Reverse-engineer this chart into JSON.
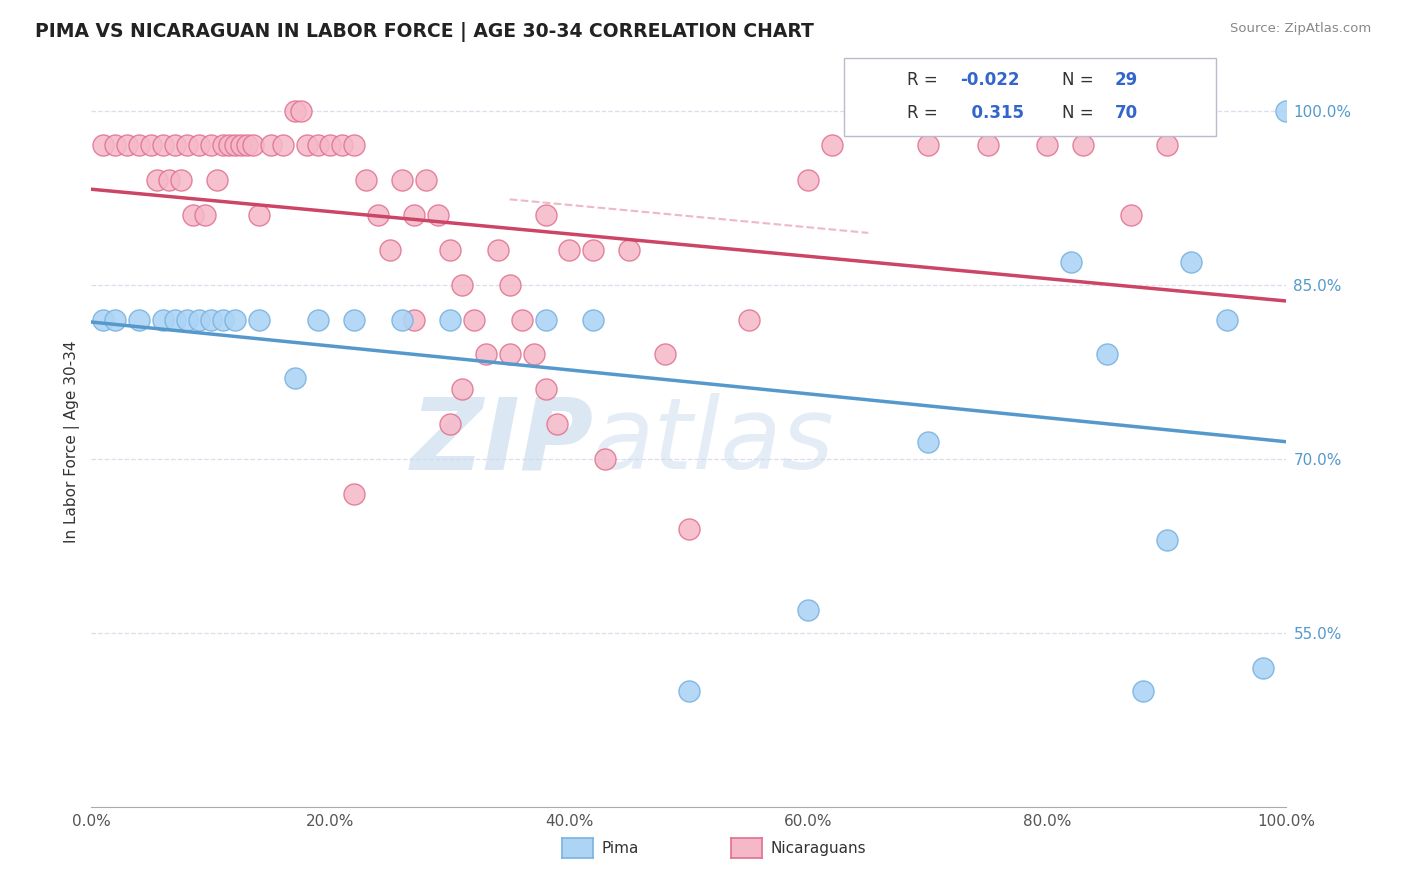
{
  "title": "PIMA VS NICARAGUAN IN LABOR FORCE | AGE 30-34 CORRELATION CHART",
  "source": "Source: ZipAtlas.com",
  "ylabel": "In Labor Force | Age 30-34",
  "pima_color": "#add4f5",
  "pima_edge_color": "#7ab3e0",
  "nic_color": "#f5b8c8",
  "nic_edge_color": "#e07090",
  "pima_line_color": "#5599cc",
  "nic_line_color": "#cc4466",
  "bg_color": "#ffffff",
  "grid_color": "#ddddee",
  "ylim_min": 0.4,
  "ylim_max": 1.03,
  "xlim_min": 0.0,
  "xlim_max": 1.0,
  "ytick_positions": [
    0.55,
    0.7,
    0.85,
    1.0
  ],
  "ytick_labels": [
    "55.0%",
    "70.0%",
    "85.0%",
    "100.0%"
  ],
  "xtick_positions": [
    0.0,
    0.2,
    0.4,
    0.6,
    0.8,
    1.0
  ],
  "xtick_labels": [
    "0.0%",
    "20.0%",
    "40.0%",
    "60.0%",
    "80.0%",
    "100.0%"
  ],
  "pima_R": -0.022,
  "pima_N": 29,
  "nic_R": 0.315,
  "nic_N": 70,
  "pima_x": [
    0.01,
    0.02,
    0.04,
    0.06,
    0.07,
    0.08,
    0.09,
    0.1,
    0.11,
    0.12,
    0.14,
    0.17,
    0.19,
    0.22,
    0.26,
    0.3,
    0.38,
    0.42,
    0.5,
    0.6,
    0.7,
    0.82,
    0.85,
    0.88,
    0.9,
    0.92,
    0.95,
    0.98,
    1.0
  ],
  "pima_y": [
    0.82,
    0.82,
    0.82,
    0.82,
    0.82,
    0.82,
    0.82,
    0.82,
    0.82,
    0.82,
    0.82,
    0.77,
    0.82,
    0.82,
    0.82,
    0.82,
    0.82,
    0.82,
    0.5,
    0.57,
    0.715,
    0.87,
    0.79,
    0.5,
    0.63,
    0.87,
    0.82,
    0.52,
    1.0
  ],
  "nic_x": [
    0.01,
    0.02,
    0.03,
    0.04,
    0.05,
    0.055,
    0.06,
    0.065,
    0.07,
    0.075,
    0.08,
    0.085,
    0.09,
    0.095,
    0.1,
    0.105,
    0.11,
    0.115,
    0.12,
    0.125,
    0.13,
    0.135,
    0.14,
    0.15,
    0.16,
    0.17,
    0.175,
    0.18,
    0.19,
    0.2,
    0.21,
    0.22,
    0.23,
    0.24,
    0.25,
    0.26,
    0.27,
    0.28,
    0.29,
    0.3,
    0.31,
    0.32,
    0.33,
    0.34,
    0.35,
    0.36,
    0.37,
    0.38,
    0.4,
    0.42,
    0.45,
    0.48,
    0.27,
    0.31,
    0.35,
    0.39,
    0.43,
    0.55,
    0.6,
    0.62,
    0.7,
    0.75,
    0.8,
    0.83,
    0.87,
    0.9,
    0.22,
    0.3,
    0.38,
    0.5
  ],
  "nic_y": [
    0.97,
    0.97,
    0.97,
    0.97,
    0.97,
    0.94,
    0.97,
    0.94,
    0.97,
    0.94,
    0.97,
    0.91,
    0.97,
    0.91,
    0.97,
    0.94,
    0.97,
    0.97,
    0.97,
    0.97,
    0.97,
    0.97,
    0.91,
    0.97,
    0.97,
    1.0,
    1.0,
    0.97,
    0.97,
    0.97,
    0.97,
    0.97,
    0.94,
    0.91,
    0.88,
    0.94,
    0.91,
    0.94,
    0.91,
    0.88,
    0.85,
    0.82,
    0.79,
    0.88,
    0.85,
    0.82,
    0.79,
    0.91,
    0.88,
    0.88,
    0.88,
    0.79,
    0.82,
    0.76,
    0.79,
    0.73,
    0.7,
    0.82,
    0.94,
    0.97,
    0.97,
    0.97,
    0.97,
    0.97,
    0.91,
    0.97,
    0.67,
    0.73,
    0.76,
    0.64
  ]
}
